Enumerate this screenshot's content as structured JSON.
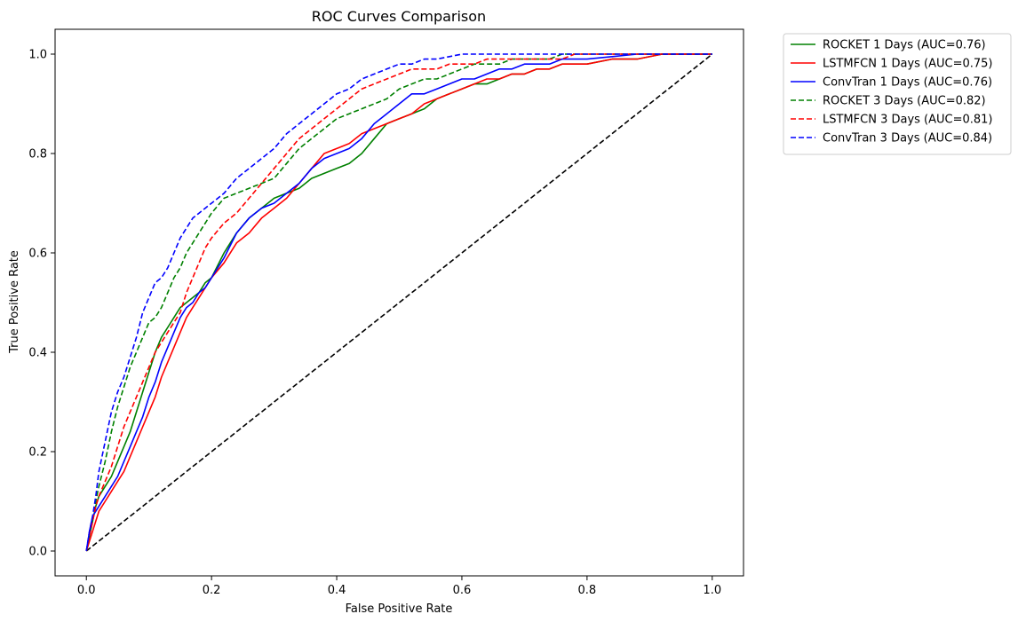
{
  "chart_data": {
    "type": "line",
    "title": "ROC Curves Comparison",
    "xlabel": "False Positive Rate",
    "ylabel": "True Positive Rate",
    "xlim": [
      -0.05,
      1.05
    ],
    "ylim": [
      -0.05,
      1.05
    ],
    "xticks": [
      "0.0",
      "0.2",
      "0.4",
      "0.6",
      "0.8",
      "1.0"
    ],
    "yticks": [
      "0.0",
      "0.2",
      "0.4",
      "0.6",
      "0.8",
      "1.0"
    ],
    "grid": false,
    "legend_position": "outside-top-right",
    "series": [
      {
        "name": "ROCKET 1 Days (AUC=0.76)",
        "color": "#008000",
        "dash": "solid",
        "x": [
          0,
          0.005,
          0.01,
          0.015,
          0.02,
          0.03,
          0.04,
          0.05,
          0.06,
          0.07,
          0.08,
          0.09,
          0.1,
          0.11,
          0.12,
          0.13,
          0.14,
          0.15,
          0.16,
          0.17,
          0.18,
          0.19,
          0.2,
          0.22,
          0.24,
          0.26,
          0.28,
          0.3,
          0.32,
          0.34,
          0.36,
          0.38,
          0.4,
          0.42,
          0.44,
          0.46,
          0.48,
          0.5,
          0.52,
          0.54,
          0.56,
          0.58,
          0.6,
          0.62,
          0.64,
          0.66,
          0.68,
          0.7,
          0.72,
          0.74,
          0.76,
          0.78,
          0.8,
          0.84,
          0.88,
          0.92,
          1.0
        ],
        "y": [
          0,
          0.03,
          0.06,
          0.09,
          0.11,
          0.13,
          0.15,
          0.18,
          0.21,
          0.24,
          0.28,
          0.32,
          0.36,
          0.4,
          0.43,
          0.45,
          0.47,
          0.49,
          0.5,
          0.51,
          0.52,
          0.54,
          0.55,
          0.6,
          0.64,
          0.67,
          0.69,
          0.71,
          0.72,
          0.73,
          0.75,
          0.76,
          0.77,
          0.78,
          0.8,
          0.83,
          0.86,
          0.87,
          0.88,
          0.89,
          0.91,
          0.92,
          0.93,
          0.94,
          0.94,
          0.95,
          0.96,
          0.96,
          0.97,
          0.97,
          0.98,
          0.98,
          0.98,
          0.99,
          0.99,
          1.0,
          1.0
        ]
      },
      {
        "name": "LSTMFCN 1 Days (AUC=0.75)",
        "color": "#ff0000",
        "dash": "solid",
        "x": [
          0,
          0.005,
          0.01,
          0.015,
          0.02,
          0.03,
          0.04,
          0.05,
          0.06,
          0.07,
          0.08,
          0.09,
          0.1,
          0.11,
          0.12,
          0.13,
          0.14,
          0.15,
          0.16,
          0.17,
          0.18,
          0.19,
          0.2,
          0.22,
          0.24,
          0.26,
          0.28,
          0.3,
          0.32,
          0.34,
          0.36,
          0.38,
          0.4,
          0.42,
          0.44,
          0.46,
          0.48,
          0.5,
          0.52,
          0.54,
          0.56,
          0.58,
          0.6,
          0.62,
          0.64,
          0.66,
          0.68,
          0.7,
          0.72,
          0.74,
          0.76,
          0.78,
          0.8,
          0.84,
          0.88,
          0.92,
          1.0
        ],
        "y": [
          0,
          0.02,
          0.04,
          0.06,
          0.08,
          0.1,
          0.12,
          0.14,
          0.16,
          0.19,
          0.22,
          0.25,
          0.28,
          0.31,
          0.35,
          0.38,
          0.41,
          0.44,
          0.47,
          0.49,
          0.51,
          0.53,
          0.55,
          0.58,
          0.62,
          0.64,
          0.67,
          0.69,
          0.71,
          0.74,
          0.77,
          0.8,
          0.81,
          0.82,
          0.84,
          0.85,
          0.86,
          0.87,
          0.88,
          0.9,
          0.91,
          0.92,
          0.93,
          0.94,
          0.95,
          0.95,
          0.96,
          0.96,
          0.97,
          0.97,
          0.98,
          0.98,
          0.98,
          0.99,
          0.99,
          1.0,
          1.0
        ]
      },
      {
        "name": "ConvTran 1 Days (AUC=0.76)",
        "color": "#0000ff",
        "dash": "solid",
        "x": [
          0,
          0.005,
          0.01,
          0.015,
          0.02,
          0.03,
          0.04,
          0.05,
          0.06,
          0.07,
          0.08,
          0.09,
          0.1,
          0.11,
          0.12,
          0.13,
          0.14,
          0.15,
          0.16,
          0.17,
          0.18,
          0.19,
          0.2,
          0.22,
          0.24,
          0.26,
          0.28,
          0.3,
          0.32,
          0.34,
          0.36,
          0.38,
          0.4,
          0.42,
          0.44,
          0.46,
          0.48,
          0.5,
          0.52,
          0.54,
          0.56,
          0.58,
          0.6,
          0.62,
          0.64,
          0.66,
          0.68,
          0.7,
          0.72,
          0.74,
          0.76,
          0.78,
          0.8,
          0.84,
          0.88,
          0.92,
          1.0
        ],
        "y": [
          0,
          0.04,
          0.07,
          0.08,
          0.09,
          0.11,
          0.13,
          0.15,
          0.18,
          0.21,
          0.24,
          0.27,
          0.31,
          0.34,
          0.38,
          0.41,
          0.44,
          0.47,
          0.49,
          0.5,
          0.52,
          0.53,
          0.55,
          0.59,
          0.64,
          0.67,
          0.69,
          0.7,
          0.72,
          0.74,
          0.77,
          0.79,
          0.8,
          0.81,
          0.83,
          0.86,
          0.88,
          0.9,
          0.92,
          0.92,
          0.93,
          0.94,
          0.95,
          0.95,
          0.96,
          0.97,
          0.97,
          0.98,
          0.98,
          0.98,
          0.99,
          0.99,
          0.99,
          0.995,
          1.0,
          1.0,
          1.0
        ]
      },
      {
        "name": "ROCKET 3 Days (AUC=0.82)",
        "color": "#008000",
        "dash": "dashed",
        "x": [
          0,
          0.005,
          0.01,
          0.015,
          0.02,
          0.03,
          0.04,
          0.05,
          0.06,
          0.07,
          0.08,
          0.09,
          0.1,
          0.11,
          0.12,
          0.13,
          0.14,
          0.15,
          0.16,
          0.17,
          0.18,
          0.19,
          0.2,
          0.22,
          0.24,
          0.26,
          0.28,
          0.3,
          0.32,
          0.34,
          0.36,
          0.38,
          0.4,
          0.42,
          0.44,
          0.46,
          0.48,
          0.5,
          0.52,
          0.54,
          0.56,
          0.58,
          0.6,
          0.62,
          0.64,
          0.66,
          0.68,
          0.7,
          0.72,
          0.74,
          0.76,
          0.78,
          0.8,
          0.84,
          0.88,
          0.92,
          1.0
        ],
        "y": [
          0,
          0.03,
          0.06,
          0.1,
          0.13,
          0.18,
          0.24,
          0.29,
          0.33,
          0.37,
          0.4,
          0.43,
          0.46,
          0.47,
          0.49,
          0.52,
          0.55,
          0.57,
          0.6,
          0.62,
          0.64,
          0.66,
          0.68,
          0.71,
          0.72,
          0.73,
          0.74,
          0.75,
          0.78,
          0.81,
          0.83,
          0.85,
          0.87,
          0.88,
          0.89,
          0.9,
          0.91,
          0.93,
          0.94,
          0.95,
          0.95,
          0.96,
          0.97,
          0.98,
          0.98,
          0.98,
          0.99,
          0.99,
          0.99,
          0.99,
          1.0,
          1.0,
          1.0,
          1.0,
          1.0,
          1.0,
          1.0
        ]
      },
      {
        "name": "LSTMFCN 3 Days (AUC=0.81)",
        "color": "#ff0000",
        "dash": "dashed",
        "x": [
          0,
          0.005,
          0.01,
          0.015,
          0.02,
          0.03,
          0.04,
          0.05,
          0.06,
          0.07,
          0.08,
          0.09,
          0.1,
          0.11,
          0.12,
          0.13,
          0.14,
          0.15,
          0.16,
          0.17,
          0.18,
          0.19,
          0.2,
          0.22,
          0.24,
          0.26,
          0.28,
          0.3,
          0.32,
          0.34,
          0.36,
          0.38,
          0.4,
          0.42,
          0.44,
          0.46,
          0.48,
          0.5,
          0.52,
          0.54,
          0.56,
          0.58,
          0.6,
          0.62,
          0.64,
          0.66,
          0.68,
          0.7,
          0.72,
          0.74,
          0.76,
          0.78,
          0.8,
          0.84,
          0.88,
          0.92,
          1.0
        ],
        "y": [
          0,
          0.03,
          0.06,
          0.09,
          0.11,
          0.14,
          0.17,
          0.21,
          0.25,
          0.28,
          0.31,
          0.34,
          0.37,
          0.4,
          0.42,
          0.44,
          0.46,
          0.48,
          0.52,
          0.55,
          0.58,
          0.61,
          0.63,
          0.66,
          0.68,
          0.71,
          0.74,
          0.77,
          0.8,
          0.83,
          0.85,
          0.87,
          0.89,
          0.91,
          0.93,
          0.94,
          0.95,
          0.96,
          0.97,
          0.97,
          0.97,
          0.98,
          0.98,
          0.98,
          0.99,
          0.99,
          0.99,
          0.99,
          0.99,
          0.99,
          0.99,
          1.0,
          1.0,
          1.0,
          1.0,
          1.0,
          1.0
        ]
      },
      {
        "name": "ConvTran 3 Days (AUC=0.84)",
        "color": "#0000ff",
        "dash": "dashed",
        "x": [
          0,
          0.005,
          0.01,
          0.015,
          0.02,
          0.03,
          0.04,
          0.05,
          0.06,
          0.07,
          0.08,
          0.09,
          0.1,
          0.11,
          0.12,
          0.13,
          0.14,
          0.15,
          0.16,
          0.17,
          0.18,
          0.19,
          0.2,
          0.22,
          0.24,
          0.26,
          0.28,
          0.3,
          0.32,
          0.34,
          0.36,
          0.38,
          0.4,
          0.42,
          0.44,
          0.46,
          0.48,
          0.5,
          0.52,
          0.54,
          0.56,
          0.58,
          0.6,
          0.62,
          0.64,
          0.66,
          0.68,
          0.7,
          0.72,
          0.74,
          0.76,
          0.78,
          0.8,
          0.84,
          0.88,
          0.92,
          1.0
        ],
        "y": [
          0,
          0.04,
          0.07,
          0.11,
          0.16,
          0.22,
          0.28,
          0.32,
          0.35,
          0.39,
          0.43,
          0.48,
          0.51,
          0.54,
          0.55,
          0.57,
          0.6,
          0.63,
          0.65,
          0.67,
          0.68,
          0.69,
          0.7,
          0.72,
          0.75,
          0.77,
          0.79,
          0.81,
          0.84,
          0.86,
          0.88,
          0.9,
          0.92,
          0.93,
          0.95,
          0.96,
          0.97,
          0.98,
          0.98,
          0.99,
          0.99,
          0.995,
          1.0,
          1.0,
          1.0,
          1.0,
          1.0,
          1.0,
          1.0,
          1.0,
          1.0,
          1.0,
          1.0,
          1.0,
          1.0,
          1.0,
          1.0
        ]
      }
    ],
    "reference_line": {
      "x": [
        0,
        1
      ],
      "y": [
        0,
        1
      ],
      "color": "#000000",
      "dash": "dashed"
    }
  }
}
